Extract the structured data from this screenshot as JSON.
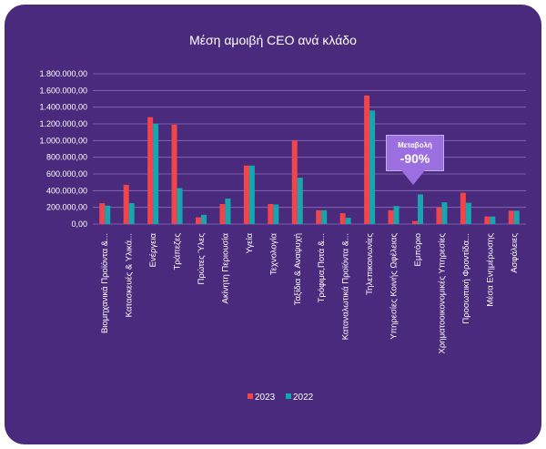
{
  "chart_data": {
    "type": "bar",
    "title": "Μέση αμοιβή CEO ανά κλάδο",
    "xlabel": "",
    "ylabel": "",
    "ylim": [
      0,
      1800000
    ],
    "yticks": [
      "0,00",
      "200.000,00",
      "400.000,00",
      "600.000,00",
      "800.000,00",
      "1.000.000,00",
      "1.200.000,00",
      "1.400.000,00",
      "1.600.000,00",
      "1.800.000,00"
    ],
    "categories": [
      "Βιομηχανικά Προϊόντα &...",
      "Κατασκευές & Υλικά...",
      "Ενέργεια",
      "Τράπεζες",
      "Πρώτες Ύλες",
      "Ακίνητη Περιουσία",
      "Υγεία",
      "Τεχνολογία",
      "Ταξίδια & Αναψυχή",
      "Τρόφιμα,Ποτά &...",
      "Καταναλωτικά Προϊόντα &...",
      "Τηλεπικοινωνίες",
      "Υπηρεσίες Κοινής Ωφέλειας",
      "Εμπόριο",
      "Χρηματοοικονομικές Υπηρεσίες",
      "Προσωπική Φροντίδα...",
      "Μέσα Ενημέρωσης",
      "Ασφάλειες"
    ],
    "series": [
      {
        "name": "2023",
        "color": "#f0454a",
        "values": [
          250000,
          470000,
          1280000,
          1190000,
          80000,
          240000,
          700000,
          240000,
          1000000,
          165000,
          130000,
          1540000,
          165000,
          35000,
          200000,
          375000,
          90000,
          160000
        ]
      },
      {
        "name": "2022",
        "color": "#17a6ad",
        "values": [
          220000,
          250000,
          1200000,
          430000,
          110000,
          305000,
          700000,
          235000,
          555000,
          165000,
          75000,
          1360000,
          215000,
          355000,
          260000,
          255000,
          90000,
          160000
        ]
      }
    ],
    "annotation": {
      "label": "Μεταβολή",
      "value": "-90%",
      "category_index": 13
    },
    "legend_position": "bottom",
    "grid": true
  }
}
